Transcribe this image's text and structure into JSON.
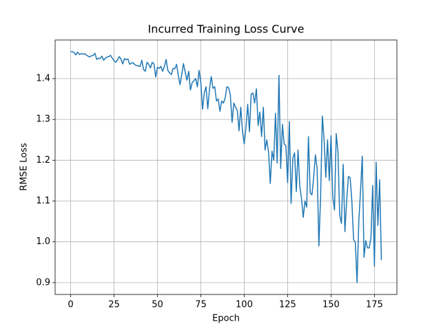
{
  "chart_data": {
    "type": "line",
    "title": "Incurred Training Loss Curve",
    "x_label": "Epoch",
    "y_label": "RMSE Loss",
    "color": "#1f77b4",
    "grid": true,
    "x": [
      0,
      1,
      2,
      3,
      4,
      5,
      6,
      7,
      8,
      9,
      10,
      11,
      12,
      13,
      14,
      15,
      16,
      17,
      18,
      19,
      20,
      21,
      22,
      23,
      24,
      25,
      26,
      27,
      28,
      29,
      30,
      31,
      32,
      33,
      34,
      35,
      36,
      37,
      38,
      39,
      40,
      41,
      42,
      43,
      44,
      45,
      46,
      47,
      48,
      49,
      50,
      51,
      52,
      53,
      54,
      55,
      56,
      57,
      58,
      59,
      60,
      61,
      62,
      63,
      64,
      65,
      66,
      67,
      68,
      69,
      70,
      71,
      72,
      73,
      74,
      75,
      76,
      77,
      78,
      79,
      80,
      81,
      82,
      83,
      84,
      85,
      86,
      87,
      88,
      89,
      90,
      91,
      92,
      93,
      94,
      95,
      96,
      97,
      98,
      99,
      100,
      101,
      102,
      103,
      104,
      105,
      106,
      107,
      108,
      109,
      110,
      111,
      112,
      113,
      114,
      115,
      116,
      117,
      118,
      119,
      120,
      121,
      122,
      123,
      124,
      125,
      126,
      127,
      128,
      129,
      130,
      131,
      132,
      133,
      134,
      135,
      136,
      137,
      138,
      139,
      140,
      141,
      142,
      143,
      144,
      145,
      146,
      147,
      148,
      149,
      150,
      151,
      152,
      153,
      154,
      155,
      156,
      157,
      158,
      159,
      160,
      161,
      162,
      163,
      164,
      165,
      166,
      167,
      168,
      169,
      170,
      171,
      172,
      173,
      174,
      175,
      176,
      177,
      178,
      179
    ],
    "values": [
      1.466,
      1.466,
      1.464,
      1.458,
      1.465,
      1.459,
      1.461,
      1.46,
      1.461,
      1.458,
      1.455,
      1.453,
      1.456,
      1.457,
      1.462,
      1.447,
      1.45,
      1.449,
      1.455,
      1.445,
      1.45,
      1.453,
      1.454,
      1.457,
      1.45,
      1.444,
      1.44,
      1.446,
      1.454,
      1.448,
      1.436,
      1.449,
      1.446,
      1.448,
      1.435,
      1.438,
      1.439,
      1.434,
      1.432,
      1.431,
      1.43,
      1.445,
      1.422,
      1.418,
      1.44,
      1.435,
      1.426,
      1.44,
      1.436,
      1.404,
      1.428,
      1.425,
      1.43,
      1.418,
      1.43,
      1.447,
      1.42,
      1.414,
      1.41,
      1.425,
      1.424,
      1.435,
      1.408,
      1.385,
      1.41,
      1.437,
      1.415,
      1.396,
      1.418,
      1.372,
      1.39,
      1.395,
      1.4,
      1.38,
      1.42,
      1.39,
      1.325,
      1.365,
      1.38,
      1.326,
      1.375,
      1.405,
      1.376,
      1.38,
      1.345,
      1.35,
      1.32,
      1.345,
      1.34,
      1.352,
      1.38,
      1.378,
      1.36,
      1.293,
      1.34,
      1.33,
      1.322,
      1.272,
      1.33,
      1.27,
      1.24,
      1.28,
      1.337,
      1.27,
      1.362,
      1.365,
      1.34,
      1.375,
      1.285,
      1.318,
      1.258,
      1.33,
      1.225,
      1.25,
      1.22,
      1.143,
      1.222,
      1.2,
      1.315,
      1.193,
      1.408,
      1.18,
      1.288,
      1.24,
      1.235,
      1.145,
      1.295,
      1.094,
      1.205,
      1.218,
      1.123,
      1.225,
      1.136,
      1.106,
      1.06,
      1.1,
      1.085,
      1.258,
      1.12,
      1.115,
      1.158,
      1.213,
      1.18,
      0.99,
      1.11,
      1.308,
      1.25,
      1.158,
      1.25,
      1.15,
      1.26,
      1.11,
      1.078,
      1.265,
      1.22,
      1.065,
      1.045,
      1.19,
      1.025,
      1.1,
      1.16,
      1.157,
      1.1,
      1.005,
      0.999,
      0.9,
      1.05,
      1.125,
      1.21,
      0.962,
      1.003,
      0.985,
      0.985,
      1.01,
      1.138,
      0.94,
      1.195,
      1.04,
      1.152,
      0.955
    ],
    "xlim": [
      -8.95,
      187.95
    ],
    "xticks": [
      0,
      25,
      50,
      75,
      100,
      125,
      150,
      175
    ],
    "ylim": [
      0.871,
      1.4946
    ],
    "yticks": [
      0.9,
      {
        "value": 1,
        "label": "1.0"
      },
      1.1,
      1.2,
      1.3,
      1.4
    ]
  }
}
